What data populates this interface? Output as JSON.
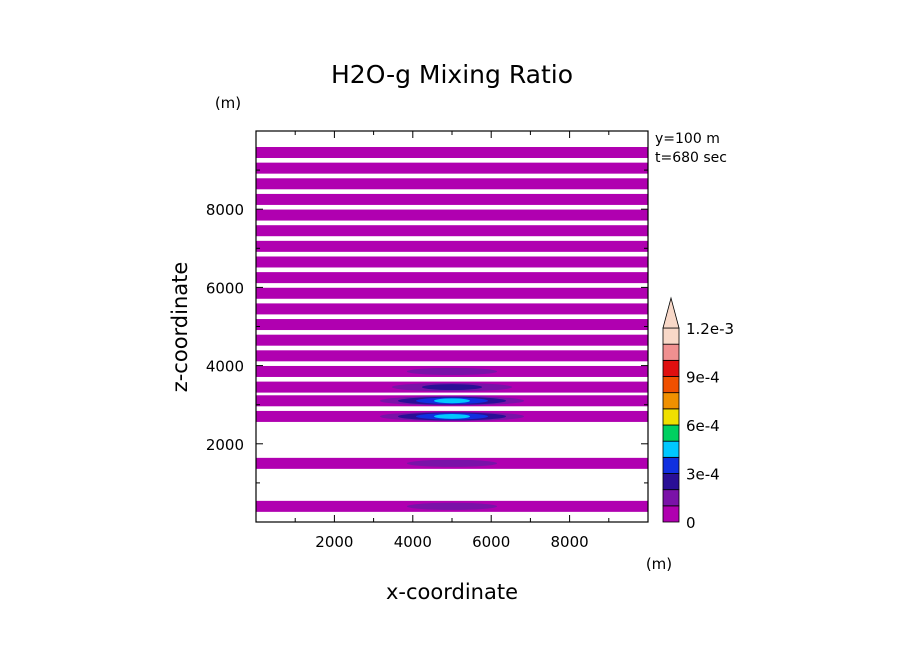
{
  "chart_data": {
    "type": "heatmap",
    "title": "H2O-g Mixing Ratio",
    "xlabel": "x-coordinate",
    "ylabel": "z-coordinate",
    "x_unit": "(m)",
    "y_unit": "(m)",
    "annotations": [
      "y=100 m",
      "t=680 sec"
    ],
    "xlim": [
      0,
      10000
    ],
    "ylim": [
      0,
      10000
    ],
    "x_ticks": [
      "2000",
      "4000",
      "6000",
      "8000"
    ],
    "y_ticks": [
      "2000",
      "4000",
      "6000",
      "8000"
    ],
    "colorbar": {
      "levels": [
        "0",
        "3e-4",
        "6e-4",
        "9e-4",
        "1.2e-3"
      ],
      "colors": [
        "#b000b0",
        "#7a12a8",
        "#2a0f96",
        "#1030e0",
        "#00c8ff",
        "#00d060",
        "#f0e000",
        "#f09000",
        "#f05000",
        "#e01010",
        "#f09090",
        "#f8d8c8"
      ]
    },
    "bands": [
      {
        "z": 400,
        "x0": 0,
        "x1": 10000,
        "max": 0.00015
      },
      {
        "z": 1500,
        "x0": 0,
        "x1": 10000,
        "max": 0.00015
      },
      {
        "z": 2700,
        "x0": 0,
        "x1": 10000,
        "max": 0.0007
      },
      {
        "z": 3100,
        "x0": 0,
        "x1": 10000,
        "max": 0.00065
      },
      {
        "z": 3450,
        "x0": 0,
        "x1": 10000,
        "max": 0.00035
      },
      {
        "z": 3850,
        "x0": 0,
        "x1": 10000,
        "max": 0.00025
      },
      {
        "z": 4250,
        "x0": 0,
        "x1": 10000,
        "max": 0.00012
      },
      {
        "z": 4650,
        "x0": 0,
        "x1": 10000,
        "max": 8e-05
      },
      {
        "z": 5050,
        "x0": 0,
        "x1": 10000,
        "max": 5e-05
      },
      {
        "z": 5450,
        "x0": 0,
        "x1": 10000,
        "max": 5e-05
      },
      {
        "z": 5850,
        "x0": 0,
        "x1": 10000,
        "max": 5e-05
      },
      {
        "z": 6250,
        "x0": 0,
        "x1": 10000,
        "max": 5e-05
      },
      {
        "z": 6650,
        "x0": 0,
        "x1": 10000,
        "max": 5e-05
      },
      {
        "z": 7050,
        "x0": 0,
        "x1": 10000,
        "max": 5e-05
      },
      {
        "z": 7450,
        "x0": 0,
        "x1": 10000,
        "max": 5e-05
      },
      {
        "z": 7850,
        "x0": 0,
        "x1": 10000,
        "max": 5e-05
      },
      {
        "z": 8250,
        "x0": 0,
        "x1": 10000,
        "max": 5e-05
      },
      {
        "z": 8650,
        "x0": 0,
        "x1": 10000,
        "max": 5e-05
      },
      {
        "z": 9050,
        "x0": 0,
        "x1": 10000,
        "max": 5e-05
      },
      {
        "z": 9450,
        "x0": 0,
        "x1": 10000,
        "max": 5e-05
      }
    ]
  }
}
